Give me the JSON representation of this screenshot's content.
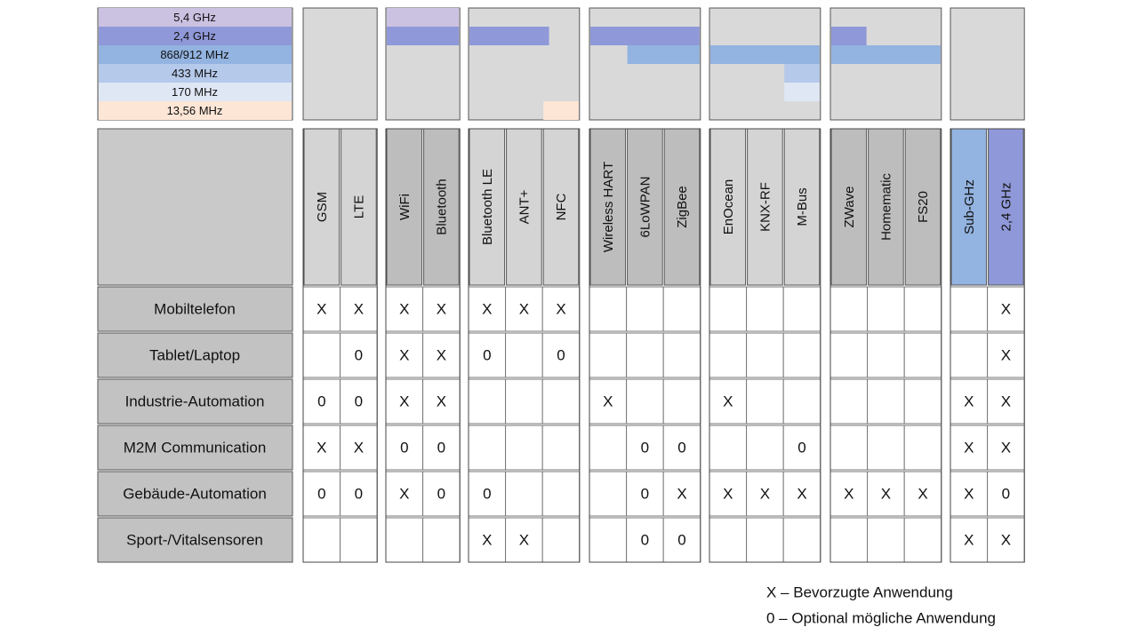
{
  "frequencies": [
    "5,4 GHz",
    "2,4 GHz",
    "868/912 MHz",
    "433 MHz",
    "170 MHz",
    "13,56 MHz"
  ],
  "groups": [
    {
      "columns": [
        "GSM",
        "LTE"
      ]
    },
    {
      "columns": [
        "WiFi",
        "Bluetooth"
      ]
    },
    {
      "columns": [
        "Bluetooth LE",
        "ANT+",
        "NFC"
      ]
    },
    {
      "columns": [
        "Wireless HART",
        "6LoWPAN",
        "ZigBee"
      ]
    },
    {
      "columns": [
        "EnOcean",
        "KNX-RF",
        "M-Bus"
      ]
    },
    {
      "columns": [
        "ZWave",
        "Homematic",
        "FS20"
      ]
    },
    {
      "columns": [
        "Sub-GHz",
        "2,4 GHz"
      ]
    }
  ],
  "rows": [
    {
      "label": "Mobiltelefon",
      "cells": [
        "X",
        "X",
        "X",
        "X",
        "X",
        "X",
        "X",
        null,
        null,
        null,
        null,
        null,
        null,
        null,
        null,
        null,
        null,
        "X"
      ]
    },
    {
      "label": "Tablet/Laptop",
      "cells": [
        null,
        "0",
        "X",
        "X",
        "0",
        null,
        "0",
        null,
        null,
        null,
        null,
        null,
        null,
        null,
        null,
        null,
        null,
        "X"
      ]
    },
    {
      "label": "Industrie-Automation",
      "cells": [
        "0",
        "0",
        "X",
        "X",
        null,
        null,
        null,
        "X",
        null,
        null,
        "X",
        null,
        null,
        null,
        null,
        null,
        "X",
        "X"
      ]
    },
    {
      "label": "M2M Communication",
      "cells": [
        "X",
        "X",
        "0",
        "0",
        null,
        null,
        null,
        null,
        "0",
        "0",
        null,
        null,
        "0",
        null,
        null,
        null,
        "X",
        "X"
      ]
    },
    {
      "label": "Gebäude-Automation",
      "cells": [
        "0",
        "0",
        "X",
        "0",
        "0",
        null,
        null,
        null,
        "0",
        "X",
        "X",
        "X",
        "X",
        "X",
        "X",
        "X",
        "X",
        "0"
      ]
    },
    {
      "label": "Sport-/Vitalsensoren",
      "cells": [
        null,
        null,
        null,
        null,
        "X",
        "X",
        null,
        null,
        "0",
        "0",
        null,
        null,
        null,
        null,
        null,
        null,
        "X",
        "X"
      ]
    }
  ],
  "legend": [
    "X – Bevorzugte Anwendung",
    "0 – Optional mögliche Anwendung"
  ]
}
